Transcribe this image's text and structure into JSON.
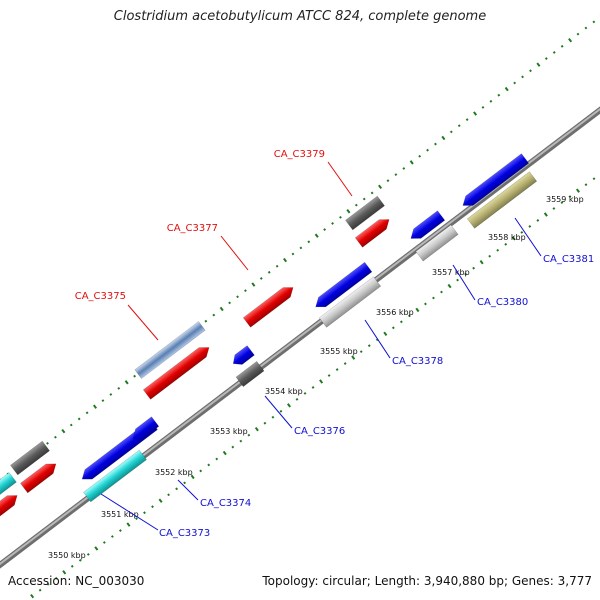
{
  "title": "Clostridium acetobutylicum ATCC 824, complete genome",
  "footer": {
    "accession": "Accession: NC_003030",
    "topology": "Topology: circular; Length: 3,940,880 bp; Genes: 3,777"
  },
  "colors": {
    "backbone": "#8a8a8a",
    "ticks": "#1f7a1f",
    "forward_label": "#e01010",
    "reverse_label": "#1010d0"
  },
  "scale": {
    "unit": "kbp",
    "ticks": [
      "3550 kbp",
      "3551 kbp",
      "3552 kbp",
      "3553 kbp",
      "3554 kbp",
      "3555 kbp",
      "3556 kbp",
      "3557 kbp",
      "3558 kbp",
      "3559 kbp"
    ]
  },
  "genes": [
    {
      "label": "CA_C3373",
      "strand": "reverse"
    },
    {
      "label": "CA_C3374",
      "strand": "reverse"
    },
    {
      "label": "CA_C3375",
      "strand": "forward"
    },
    {
      "label": "CA_C3376",
      "strand": "reverse"
    },
    {
      "label": "CA_C3377",
      "strand": "forward"
    },
    {
      "label": "CA_C3378",
      "strand": "reverse"
    },
    {
      "label": "CA_C3379",
      "strand": "forward"
    },
    {
      "label": "CA_C3380",
      "strand": "reverse"
    },
    {
      "label": "CA_C3381",
      "strand": "reverse"
    }
  ]
}
